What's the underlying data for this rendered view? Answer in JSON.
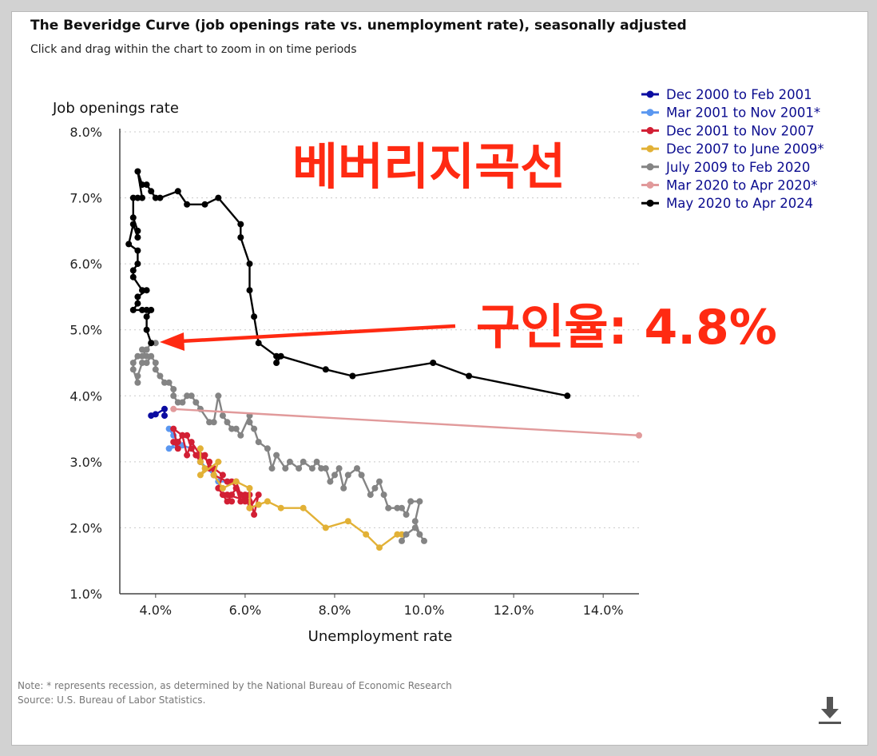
{
  "title": "The Beveridge Curve (job openings rate vs. unemployment rate), seasonally adjusted",
  "subtitle": "Click and drag within the chart to zoom in on time periods",
  "note_line1": "Note: * represents recession, as determined by the National Bureau of Economic Research",
  "note_line2": "Source: U.S. Bureau of Labor Statistics.",
  "icons": {
    "download": "download-icon"
  },
  "annotations": {
    "korean_title": "베버리지곡선",
    "job_openings_callout": "구인율: 4.8%",
    "callout_color": "#ff2a12"
  },
  "chart_data": {
    "type": "line",
    "xlabel": "Unemployment rate",
    "ylabel": "Job openings rate",
    "xlim": [
      3.2,
      14.8
    ],
    "ylim": [
      1.0,
      8.0
    ],
    "xticks": [
      "4.0%",
      "6.0%",
      "8.0%",
      "10.0%",
      "12.0%",
      "14.0%"
    ],
    "xtick_values": [
      4,
      6,
      8,
      10,
      12,
      14
    ],
    "yticks": [
      "1.0%",
      "2.0%",
      "3.0%",
      "4.0%",
      "5.0%",
      "6.0%",
      "7.0%",
      "8.0%"
    ],
    "ytick_values": [
      1,
      2,
      3,
      4,
      5,
      6,
      7,
      8
    ],
    "legend_position": "top-right",
    "series": [
      {
        "name": "Dec 2000 to Feb 2001",
        "color": "#0b0ca1",
        "points": [
          [
            3.9,
            3.7
          ],
          [
            4.0,
            3.72
          ],
          [
            4.2,
            3.8
          ],
          [
            4.2,
            3.7
          ]
        ]
      },
      {
        "name": "Mar 2001 to Nov 2001*",
        "color": "#5a97f0",
        "points": [
          [
            4.3,
            3.5
          ],
          [
            4.4,
            3.4
          ],
          [
            4.5,
            3.3
          ],
          [
            4.3,
            3.2
          ],
          [
            4.6,
            3.25
          ],
          [
            4.8,
            3.2
          ],
          [
            5.0,
            3.0
          ],
          [
            5.3,
            2.8
          ],
          [
            5.4,
            2.7
          ],
          [
            5.6,
            2.7
          ]
        ]
      },
      {
        "name": "Dec 2001 to Nov 2007",
        "color": "#d21f34",
        "points": [
          [
            5.7,
            2.7
          ],
          [
            5.8,
            2.6
          ],
          [
            5.9,
            2.5
          ],
          [
            6.0,
            2.4
          ],
          [
            6.1,
            2.5
          ],
          [
            6.2,
            2.2
          ],
          [
            6.3,
            2.5
          ],
          [
            6.1,
            2.3
          ],
          [
            6.0,
            2.5
          ],
          [
            5.9,
            2.4
          ],
          [
            5.8,
            2.6
          ],
          [
            5.7,
            2.5
          ],
          [
            5.6,
            2.4
          ],
          [
            5.5,
            2.5
          ],
          [
            5.4,
            2.6
          ],
          [
            5.5,
            2.8
          ],
          [
            5.3,
            2.9
          ],
          [
            5.2,
            2.9
          ],
          [
            5.1,
            3.1
          ],
          [
            5.0,
            3.0
          ],
          [
            4.9,
            3.1
          ],
          [
            4.8,
            3.2
          ],
          [
            4.7,
            3.4
          ],
          [
            4.6,
            3.4
          ],
          [
            4.5,
            3.3
          ],
          [
            4.4,
            3.3
          ],
          [
            4.5,
            3.2
          ],
          [
            4.4,
            3.5
          ],
          [
            4.6,
            3.4
          ],
          [
            4.7,
            3.1
          ],
          [
            4.8,
            3.3
          ],
          [
            5.0,
            3.1
          ],
          [
            5.2,
            3.0
          ],
          [
            5.3,
            2.8
          ],
          [
            5.6,
            2.7
          ],
          [
            5.8,
            2.7
          ],
          [
            5.9,
            2.5
          ],
          [
            6.1,
            2.4
          ],
          [
            5.6,
            2.5
          ],
          [
            5.7,
            2.4
          ]
        ]
      },
      {
        "name": "Dec 2007 to June 2009*",
        "color": "#e2b136",
        "points": [
          [
            5.0,
            3.2
          ],
          [
            5.0,
            3.0
          ],
          [
            5.1,
            2.9
          ],
          [
            5.0,
            2.8
          ],
          [
            5.4,
            3.0
          ],
          [
            5.3,
            2.8
          ],
          [
            5.5,
            2.6
          ],
          [
            5.8,
            2.7
          ],
          [
            6.1,
            2.6
          ],
          [
            6.1,
            2.3
          ],
          [
            6.3,
            2.35
          ],
          [
            6.5,
            2.4
          ],
          [
            6.8,
            2.3
          ],
          [
            7.3,
            2.3
          ],
          [
            7.8,
            2.0
          ],
          [
            8.3,
            2.1
          ],
          [
            8.7,
            1.9
          ],
          [
            9.0,
            1.7
          ],
          [
            9.4,
            1.9
          ],
          [
            9.5,
            1.9
          ]
        ]
      },
      {
        "name": "July 2009 to Feb 2020",
        "color": "#848484",
        "points": [
          [
            9.5,
            1.8
          ],
          [
            9.6,
            1.9
          ],
          [
            9.8,
            2.0
          ],
          [
            10.0,
            1.8
          ],
          [
            9.9,
            1.9
          ],
          [
            9.8,
            2.1
          ],
          [
            9.9,
            2.4
          ],
          [
            9.7,
            2.4
          ],
          [
            9.6,
            2.2
          ],
          [
            9.5,
            2.3
          ],
          [
            9.4,
            2.3
          ],
          [
            9.2,
            2.3
          ],
          [
            9.1,
            2.5
          ],
          [
            9.0,
            2.7
          ],
          [
            8.9,
            2.6
          ],
          [
            8.8,
            2.5
          ],
          [
            8.6,
            2.8
          ],
          [
            8.5,
            2.9
          ],
          [
            8.3,
            2.8
          ],
          [
            8.2,
            2.6
          ],
          [
            8.1,
            2.9
          ],
          [
            8.0,
            2.8
          ],
          [
            7.9,
            2.7
          ],
          [
            7.8,
            2.9
          ],
          [
            7.7,
            2.9
          ],
          [
            7.6,
            3.0
          ],
          [
            7.5,
            2.9
          ],
          [
            7.3,
            3.0
          ],
          [
            7.2,
            2.9
          ],
          [
            7.0,
            3.0
          ],
          [
            6.9,
            2.9
          ],
          [
            6.7,
            3.1
          ],
          [
            6.6,
            2.9
          ],
          [
            6.5,
            3.2
          ],
          [
            6.3,
            3.3
          ],
          [
            6.2,
            3.5
          ],
          [
            6.1,
            3.6
          ],
          [
            6.1,
            3.7
          ],
          [
            5.9,
            3.4
          ],
          [
            5.8,
            3.5
          ],
          [
            5.7,
            3.5
          ],
          [
            5.6,
            3.6
          ],
          [
            5.5,
            3.7
          ],
          [
            5.4,
            4.0
          ],
          [
            5.3,
            3.6
          ],
          [
            5.2,
            3.6
          ],
          [
            5.0,
            3.8
          ],
          [
            4.9,
            3.9
          ],
          [
            4.8,
            4.0
          ],
          [
            4.7,
            4.0
          ],
          [
            4.6,
            3.9
          ],
          [
            4.5,
            3.9
          ],
          [
            4.4,
            4.0
          ],
          [
            4.4,
            4.1
          ],
          [
            4.3,
            4.2
          ],
          [
            4.2,
            4.2
          ],
          [
            4.1,
            4.3
          ],
          [
            4.0,
            4.4
          ],
          [
            4.0,
            4.5
          ],
          [
            3.9,
            4.6
          ],
          [
            3.8,
            4.5
          ],
          [
            3.7,
            4.5
          ],
          [
            3.6,
            4.3
          ],
          [
            3.6,
            4.2
          ],
          [
            3.5,
            4.4
          ],
          [
            3.5,
            4.5
          ],
          [
            3.6,
            4.6
          ],
          [
            3.7,
            4.6
          ],
          [
            3.8,
            4.6
          ],
          [
            3.7,
            4.7
          ],
          [
            3.8,
            4.7
          ],
          [
            3.9,
            4.8
          ],
          [
            4.0,
            4.8
          ]
        ]
      },
      {
        "name": "Mar 2020 to Apr 2020*",
        "color": "#e19a9b",
        "points": [
          [
            4.4,
            3.8
          ],
          [
            14.8,
            3.4
          ]
        ]
      },
      {
        "name": "May 2020 to Apr 2024",
        "color": "#000000",
        "points": [
          [
            13.2,
            4.0
          ],
          [
            11.0,
            4.3
          ],
          [
            10.2,
            4.5
          ],
          [
            8.4,
            4.3
          ],
          [
            7.8,
            4.4
          ],
          [
            6.8,
            4.6
          ],
          [
            6.7,
            4.5
          ],
          [
            6.7,
            4.6
          ],
          [
            6.3,
            4.8
          ],
          [
            6.2,
            5.2
          ],
          [
            6.1,
            5.6
          ],
          [
            6.1,
            6.0
          ],
          [
            5.9,
            6.4
          ],
          [
            5.9,
            6.6
          ],
          [
            5.4,
            7.0
          ],
          [
            5.1,
            6.9
          ],
          [
            4.7,
            6.9
          ],
          [
            4.5,
            7.1
          ],
          [
            4.1,
            7.0
          ],
          [
            4.0,
            7.0
          ],
          [
            3.9,
            7.1
          ],
          [
            3.8,
            7.2
          ],
          [
            3.7,
            7.2
          ],
          [
            3.6,
            7.4
          ],
          [
            3.7,
            7.0
          ],
          [
            3.6,
            7.0
          ],
          [
            3.5,
            7.0
          ],
          [
            3.5,
            6.7
          ],
          [
            3.6,
            6.5
          ],
          [
            3.6,
            6.4
          ],
          [
            3.5,
            6.6
          ],
          [
            3.4,
            6.3
          ],
          [
            3.6,
            6.2
          ],
          [
            3.6,
            6.0
          ],
          [
            3.5,
            5.9
          ],
          [
            3.5,
            5.8
          ],
          [
            3.7,
            5.6
          ],
          [
            3.8,
            5.6
          ],
          [
            3.6,
            5.5
          ],
          [
            3.6,
            5.4
          ],
          [
            3.5,
            5.3
          ],
          [
            3.7,
            5.3
          ],
          [
            3.8,
            5.3
          ],
          [
            3.9,
            5.3
          ],
          [
            3.8,
            5.2
          ],
          [
            3.8,
            5.0
          ],
          [
            3.9,
            4.8
          ]
        ]
      }
    ]
  }
}
